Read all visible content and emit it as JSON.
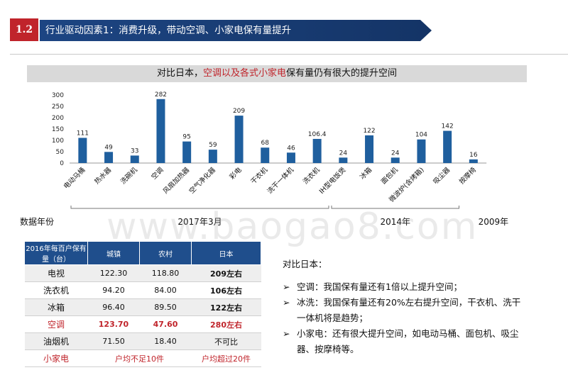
{
  "header": {
    "section_number": "1.2",
    "title": "行业驱动因素1：消费升级，带动空调、小家电保有量提升"
  },
  "chart_title": {
    "part1": "对比日本，",
    "part2": "空调以及各式小家电",
    "part3": "保有量仍有很大的提升空间"
  },
  "chart_data": {
    "type": "bar",
    "ylim": [
      0,
      300
    ],
    "yticks": [
      0,
      50,
      100,
      150,
      200,
      250,
      300
    ],
    "categories": [
      "电动马桶",
      "热水器",
      "洗碗机",
      "空调",
      "风扇加热器",
      "空气净化器",
      "彩电",
      "干衣机",
      "洗干一体机",
      "洗衣机",
      "IH型电饭煲",
      "冰箱",
      "面包机",
      "微波炉(含烤箱)",
      "吸尘器",
      "按摩椅"
    ],
    "values": [
      111,
      49,
      33,
      282,
      95,
      59,
      209,
      68,
      46,
      106.4,
      24,
      122,
      24,
      104,
      142,
      16
    ],
    "value_labels": [
      "111",
      "49",
      "33",
      "282",
      "95",
      "59",
      "209",
      "68",
      "46",
      "106.4",
      "24",
      "122",
      "24",
      "104",
      "142",
      "16"
    ],
    "bar_color": "#1f5f9e",
    "groups": [
      {
        "label": "2017年3月",
        "from": 0,
        "to": 9
      },
      {
        "label": "2014年",
        "from": 10,
        "to": 14
      },
      {
        "label": "2009年",
        "from": 15,
        "to": 15
      }
    ]
  },
  "data_year_label": "数据年份",
  "table": {
    "headers": [
      "2016年每百户保有量（台）",
      "城镇",
      "农村",
      "日本"
    ],
    "rows": [
      [
        "电视",
        "122.30",
        "118.80",
        "209左右"
      ],
      [
        "洗衣机",
        "94.20",
        "84.00",
        "106左右"
      ],
      [
        "冰箱",
        "96.40",
        "89.50",
        "122左右"
      ],
      [
        "空调",
        "123.70",
        "47.60",
        "280左右"
      ],
      [
        "油烟机",
        "71.50",
        "18.40",
        "不可比"
      ]
    ],
    "last_row": {
      "name": "小家电",
      "cn": "户均不足10件",
      "jp": "户均超过20件"
    }
  },
  "notes": {
    "intro": "对比日本：",
    "items": [
      "空调：我国保有量还有1倍以上提升空间；",
      "冰洗：我国保有量还有20%左右提升空间，干衣机、洗干一体机将是趋势；",
      "小家电：还有很大提升空间，如电动马桶、面包机、吸尘器、按摩椅等。"
    ]
  },
  "watermark": "www.baogao8.com",
  "colors": {
    "accent_red": "#c0242b",
    "navy": "#1f4e8c",
    "bar": "#1f5f9e"
  }
}
